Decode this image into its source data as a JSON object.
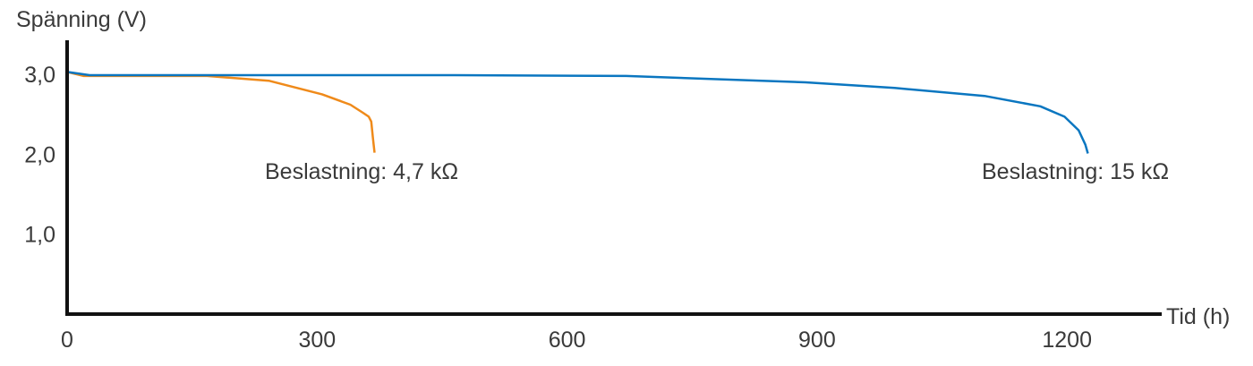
{
  "chart_data": {
    "type": "line",
    "title": "",
    "ylabel": "Spänning (V)",
    "xlabel": "Tid (h)",
    "xlim": [
      0,
      1300
    ],
    "ylim": [
      0,
      3.4
    ],
    "x_ticks": [
      0,
      300,
      600,
      900,
      1200
    ],
    "x_tick_labels": [
      "0",
      "300",
      "600",
      "900",
      "1200"
    ],
    "y_ticks": [
      1.0,
      2.0,
      3.0
    ],
    "y_tick_labels": [
      "1,0",
      "2,0",
      "3,0"
    ],
    "grid": false,
    "colors": {
      "orange": "#ef8a1a",
      "blue": "#0a76c0"
    },
    "series": [
      {
        "name": "Beslastning: 4,7 kΩ",
        "color": "#ef8a1a",
        "x": [
          0,
          20,
          100,
          168,
          242,
          306,
          340,
          355,
          362,
          365,
          367,
          369
        ],
        "y": [
          3.03,
          2.98,
          2.98,
          2.98,
          2.92,
          2.75,
          2.62,
          2.52,
          2.47,
          2.41,
          2.2,
          2.02
        ]
      },
      {
        "name": "Beslastning: 15 kΩ",
        "color": "#0a76c0",
        "x": [
          0,
          27,
          456,
          671,
          886,
          993,
          1101,
          1168,
          1197,
          1214,
          1222,
          1225
        ],
        "y": [
          3.03,
          2.99,
          2.99,
          2.98,
          2.9,
          2.83,
          2.73,
          2.6,
          2.47,
          2.3,
          2.12,
          2.01
        ]
      }
    ]
  }
}
